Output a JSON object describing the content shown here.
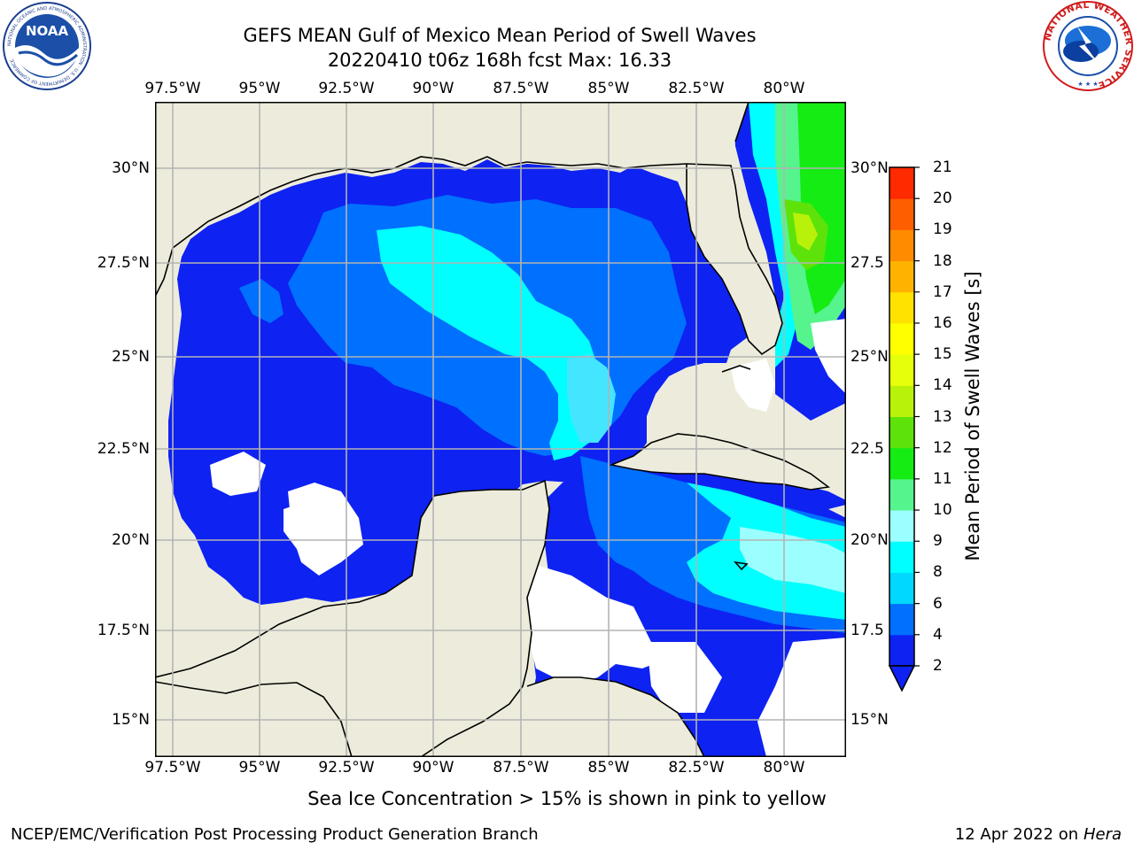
{
  "header": {
    "title_line1": "GEFS MEAN Gulf of Mexico Mean Period of Swell Waves",
    "title_line2": "20220410 t06z 168h fcst   Max: 16.33"
  },
  "logos": {
    "left": {
      "name": "NOAA",
      "ring_text": "NATIONAL OCEANIC AND ATMOSPHERIC ADMINISTRATION · U.S. DEPARTMENT OF COMMERCE"
    },
    "right": {
      "name": "NATIONAL WEATHER SERVICE"
    }
  },
  "map": {
    "lon_labels": [
      "97.5°W",
      "95°W",
      "92.5°W",
      "90°W",
      "87.5°W",
      "85°W",
      "82.5°W",
      "80°W"
    ],
    "lat_labels_left": [
      "30°N",
      "27.5°N",
      "25°N",
      "22.5°N",
      "20°N",
      "17.5°N",
      "15°N"
    ],
    "lat_labels_right": [
      "30°N",
      "27.5",
      "25°N",
      "22.5",
      "20°N",
      "17.5",
      "15°N"
    ],
    "lon_range": [
      -98,
      -78.3
    ],
    "lat_range": [
      14,
      31.6
    ],
    "grid": true,
    "colors": {
      "land": "#edecdc",
      "missing": "#ffffff",
      "grid": "#b4b4b4",
      "coast": "#000000"
    }
  },
  "colorbar": {
    "label": "Mean Period of Swell Waves [s]",
    "ticks": [
      "2",
      "4",
      "6",
      "8",
      "9",
      "10",
      "11",
      "12",
      "13",
      "14",
      "15",
      "16",
      "17",
      "18",
      "19",
      "20",
      "21"
    ],
    "colors": [
      "#0e22f2",
      "#0070ff",
      "#00d8ff",
      "#00ffff",
      "#9cffff",
      "#55f48c",
      "#14ec14",
      "#5de30a",
      "#b8f10a",
      "#e6ff0a",
      "#ffff00",
      "#ffe200",
      "#ffb300",
      "#ff8c00",
      "#ff5e00",
      "#ff2a00",
      "#ff0000"
    ],
    "under_color": "#0e22f2",
    "extend": "min"
  },
  "footnote": "Sea Ice Concentration > 15% is shown in pink to yellow",
  "footer": {
    "left": "NCEP/EMC/Verification Post Processing Product Generation Branch",
    "right_prefix": "12 Apr 2022 on ",
    "right_italic": "Hera"
  }
}
